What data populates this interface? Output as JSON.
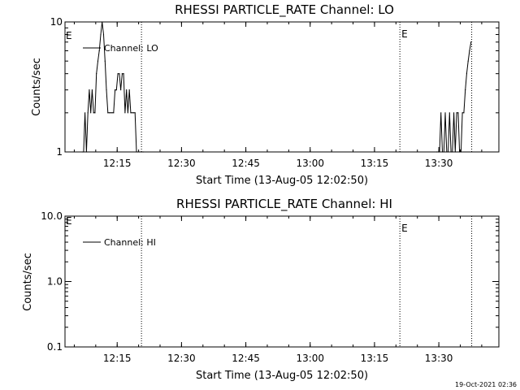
{
  "footer": {
    "timestamp": "19-Oct-2021 02:36"
  },
  "chart_data": [
    {
      "type": "line",
      "title": "RHESSI PARTICLE_RATE Channel: LO",
      "xlabel": "Start Time (13-Aug-05 12:02:50)",
      "ylabel": "Counts/sec",
      "yscale": "log",
      "ylim": [
        1,
        10
      ],
      "xlim": [
        "12:02:50",
        "13:44:00"
      ],
      "yticks": [
        "1",
        "10"
      ],
      "xticks": [
        "12:15",
        "12:30",
        "12:45",
        "13:00",
        "13:15",
        "13:30"
      ],
      "legend": {
        "label": "Channel: LO",
        "position": "top-left"
      },
      "markers": [
        {
          "time": "12:20:40",
          "label": ""
        },
        {
          "time": "13:20:55",
          "label": "E"
        },
        {
          "time": "13:37:40",
          "label": ""
        }
      ],
      "corner_label": "E",
      "series": [
        {
          "name": "Channel: LO",
          "x": [
            "12:06:50",
            "12:07:10",
            "12:07:30",
            "12:07:50",
            "12:08:10",
            "12:08:30",
            "12:08:50",
            "12:09:10",
            "12:09:30",
            "12:09:50",
            "12:10:10",
            "12:10:30",
            "12:10:50",
            "12:11:10",
            "12:11:30",
            "12:11:50",
            "12:12:10",
            "12:12:30",
            "12:12:50",
            "12:13:10",
            "12:13:30",
            "12:13:50",
            "12:14:10",
            "12:14:30",
            "12:14:50",
            "12:15:10",
            "12:15:30",
            "12:15:50",
            "12:16:10",
            "12:16:30",
            "12:16:50",
            "12:17:10",
            "12:17:30",
            "12:17:50",
            "12:18:10",
            "12:18:30",
            "12:18:50",
            "12:19:10",
            "12:19:30",
            "12:19:50",
            "12:20:10",
            "12:20:30",
            "12:20:50",
            "12:21:10",
            "13:29:30",
            "13:29:50",
            "13:30:10",
            "13:30:30",
            "13:30:50",
            "13:31:10",
            "13:31:30",
            "13:31:50",
            "13:32:10",
            "13:32:30",
            "13:32:50",
            "13:33:10",
            "13:33:30",
            "13:33:50",
            "13:34:10",
            "13:34:30",
            "13:34:50",
            "13:35:10",
            "13:35:30",
            "13:35:50",
            "13:36:10",
            "13:36:30",
            "13:36:50",
            "13:37:10",
            "13:37:30"
          ],
          "y": [
            1,
            1,
            2,
            1,
            2,
            3,
            2,
            3,
            2,
            2,
            4,
            5,
            6,
            8,
            10,
            8,
            5,
            3,
            2,
            2,
            2,
            2,
            2,
            3,
            3,
            4,
            4,
            3,
            4,
            4,
            2,
            3,
            2,
            3,
            2,
            2,
            2,
            2,
            1,
            1,
            1,
            1,
            1,
            1,
            1,
            1,
            1,
            2,
            1,
            1,
            2,
            1,
            1,
            2,
            1,
            1,
            2,
            1,
            2,
            2,
            1,
            1,
            2,
            2,
            3,
            4,
            5,
            6,
            7
          ]
        }
      ]
    },
    {
      "type": "line",
      "title": "RHESSI PARTICLE_RATE Channel: HI",
      "xlabel": "Start Time (13-Aug-05 12:02:50)",
      "ylabel": "Counts/sec",
      "yscale": "log",
      "ylim": [
        0.1,
        10
      ],
      "xlim": [
        "12:02:50",
        "13:44:00"
      ],
      "yticks": [
        "0.1",
        "1.0",
        "10.0"
      ],
      "xticks": [
        "12:15",
        "12:30",
        "12:45",
        "13:00",
        "13:15",
        "13:30"
      ],
      "legend": {
        "label": "Channel: HI",
        "position": "top-left"
      },
      "markers": [
        {
          "time": "12:20:40",
          "label": ""
        },
        {
          "time": "13:20:55",
          "label": "E"
        },
        {
          "time": "13:37:40",
          "label": ""
        }
      ],
      "corner_label": "E",
      "series": [
        {
          "name": "Channel: HI",
          "x": [],
          "y": []
        }
      ]
    }
  ]
}
